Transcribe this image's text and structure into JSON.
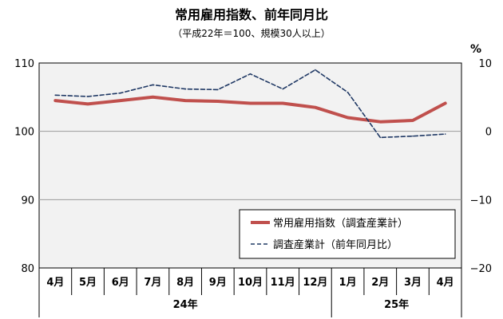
{
  "chart_data": {
    "type": "line",
    "title": "常用雇用指数、前年同月比",
    "subtitle": "（平成22年＝100、規模30人以上）",
    "right_axis_unit": "%",
    "categories": [
      "4月",
      "5月",
      "6月",
      "7月",
      "8月",
      "9月",
      "10月",
      "11月",
      "12月",
      "1月",
      "2月",
      "3月",
      "4月"
    ],
    "year_groups": [
      {
        "label": "24年",
        "from": 0,
        "to": 8
      },
      {
        "label": "25年",
        "from": 9,
        "to": 12
      }
    ],
    "y_left": {
      "min": 80,
      "max": 110,
      "ticks": [
        80,
        90,
        100,
        110
      ]
    },
    "y_right": {
      "min": -20,
      "max": 10,
      "ticks": [
        -20,
        -10,
        0,
        10
      ],
      "tick_labels": [
        "−20",
        "−10",
        "0",
        "10"
      ]
    },
    "series": [
      {
        "name": "常用雇用指数（調査産業計）",
        "axis": "left",
        "color": "#c0504d",
        "style": "solid",
        "values": [
          104.5,
          104.0,
          104.5,
          105.0,
          104.5,
          104.4,
          104.1,
          104.1,
          103.5,
          102.0,
          101.4,
          101.6,
          104.1
        ]
      },
      {
        "name": "調査産業計（前年同月比）",
        "axis": "right",
        "color": "#1f3864",
        "style": "dashed",
        "values": [
          5.3,
          5.1,
          5.6,
          6.8,
          6.2,
          6.1,
          8.4,
          6.2,
          9.0,
          5.7,
          -0.9,
          -0.7,
          -0.4
        ]
      }
    ],
    "grid": "horizontal",
    "legend_position": "bottom-right"
  }
}
